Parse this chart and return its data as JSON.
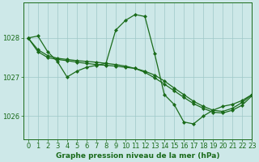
{
  "title": "Graphe pression niveau de la mer (hPa)",
  "bg_color": "#cde8e8",
  "line_color": "#1a6b1a",
  "grid_color": "#9ec8c8",
  "xlim": [
    -0.5,
    23
  ],
  "ylim": [
    1025.4,
    1028.9
  ],
  "yticks": [
    1026,
    1027,
    1028
  ],
  "xticks": [
    0,
    1,
    2,
    3,
    4,
    5,
    6,
    7,
    8,
    9,
    10,
    11,
    12,
    13,
    14,
    15,
    16,
    17,
    18,
    19,
    20,
    21,
    22,
    23
  ],
  "series": [
    [
      1028.0,
      1028.05,
      1027.65,
      1027.4,
      1027.0,
      1027.15,
      1027.25,
      1027.3,
      1027.35,
      1028.2,
      1028.45,
      1028.6,
      1028.55,
      1027.6,
      1026.55,
      1026.3,
      1025.85,
      1025.8,
      1026.0,
      1026.15,
      1026.25,
      1026.3,
      1026.4,
      1026.55
    ],
    [
      1028.0,
      1027.65,
      1027.5,
      1027.45,
      1027.42,
      1027.38,
      1027.35,
      1027.32,
      1027.3,
      1027.28,
      1027.25,
      1027.22,
      1027.15,
      1027.05,
      1026.9,
      1026.72,
      1026.55,
      1026.38,
      1026.25,
      1026.15,
      1026.12,
      1026.2,
      1026.35,
      1026.55
    ],
    [
      1028.0,
      1027.7,
      1027.55,
      1027.48,
      1027.45,
      1027.42,
      1027.4,
      1027.38,
      1027.35,
      1027.32,
      1027.28,
      1027.22,
      1027.12,
      1026.98,
      1026.82,
      1026.65,
      1026.48,
      1026.32,
      1026.2,
      1026.1,
      1026.08,
      1026.15,
      1026.28,
      1026.52
    ]
  ],
  "marker": "D",
  "markersize": 2.0,
  "linewidth": 0.9,
  "title_fontsize": 6.5,
  "tick_fontsize": 6.0,
  "tick_color": "#1a6b1a"
}
